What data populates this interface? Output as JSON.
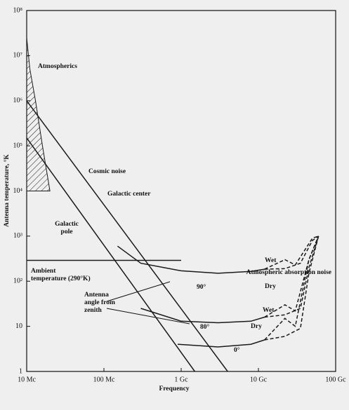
{
  "chart_data": {
    "type": "line",
    "x_label": "Frequency",
    "y_label": "Antenna temperature, °K",
    "log_x": true,
    "log_y": true,
    "xlim": [
      10,
      100000
    ],
    "xticks": [
      {
        "value": 10,
        "label": "10 Mc"
      },
      {
        "value": 100,
        "label": "100 Mc"
      },
      {
        "value": 1000,
        "label": "1 Gc"
      },
      {
        "value": 10000,
        "label": "10 Gc"
      },
      {
        "value": 100000,
        "label": "100 Gc"
      }
    ],
    "ylim": [
      1,
      100000000
    ],
    "yticks": [
      {
        "value": 1,
        "label": "1"
      },
      {
        "value": 10,
        "label": "10"
      },
      {
        "value": 100,
        "label": "10²"
      },
      {
        "value": 1000,
        "label": "10³"
      },
      {
        "value": 10000,
        "label": "10⁴"
      },
      {
        "value": 100000,
        "label": "10⁵"
      },
      {
        "value": 1000000,
        "label": "10⁶"
      },
      {
        "value": 10000000,
        "label": "10⁷"
      },
      {
        "value": 100000000,
        "label": "10⁸"
      }
    ],
    "color": "#1a1a1a",
    "area": {
      "x": [
        10,
        11,
        13,
        16,
        20
      ],
      "values": [
        25000000,
        5000000,
        1000000,
        100000,
        10000
      ],
      "base": 10000
    },
    "ambient": {
      "value": 290,
      "x": [
        10,
        1000
      ]
    },
    "series": [
      {
        "color": "#1a1a1a",
        "dash": false,
        "x": [
          10,
          4000
        ],
        "values": [
          1000000,
          1
        ]
      },
      {
        "color": "#1a1a1a",
        "dash": false,
        "x": [
          10,
          1500
        ],
        "values": [
          150000,
          1
        ]
      },
      {
        "color": "#1a1a1a",
        "dash": false,
        "x": [
          150,
          300,
          1000,
          3000,
          8000,
          12000
        ],
        "values": [
          600,
          250,
          170,
          150,
          165,
          185
        ]
      },
      {
        "color": "#1a1a1a",
        "dash": true,
        "x": [
          12000,
          22000,
          30000,
          50000,
          60000
        ],
        "values": [
          185,
          300,
          230,
          900,
          1000
        ]
      },
      {
        "color": "#1a1a1a",
        "dash": true,
        "x": [
          12000,
          22000,
          35000,
          50000,
          60000
        ],
        "values": [
          185,
          190,
          250,
          800,
          1000
        ]
      },
      {
        "color": "#1a1a1a",
        "dash": false,
        "x": [
          300,
          1000,
          3000,
          8000,
          12000
        ],
        "values": [
          25,
          13,
          12,
          13,
          16
        ]
      },
      {
        "color": "#1a1a1a",
        "dash": true,
        "x": [
          12000,
          22000,
          30000,
          45000,
          60000
        ],
        "values": [
          16,
          30,
          22,
          300,
          1000
        ]
      },
      {
        "color": "#1a1a1a",
        "dash": true,
        "x": [
          12000,
          22000,
          35000,
          45000,
          60000
        ],
        "values": [
          16,
          18,
          25,
          200,
          1000
        ]
      },
      {
        "color": "#1a1a1a",
        "dash": false,
        "x": [
          900,
          3000,
          8000,
          12000
        ],
        "values": [
          4,
          3.5,
          4,
          5
        ]
      },
      {
        "color": "#1a1a1a",
        "dash": true,
        "x": [
          12000,
          22000,
          30000,
          45000,
          60000
        ],
        "values": [
          5,
          15,
          10,
          300,
          1000
        ]
      },
      {
        "color": "#1a1a1a",
        "dash": true,
        "x": [
          12000,
          22000,
          35000,
          45000,
          60000
        ],
        "values": [
          5,
          6,
          9,
          150,
          1000
        ]
      }
    ],
    "annotations": [
      {
        "lines": [
          "Atmospherics"
        ]
      },
      {
        "lines": [
          "Cosmic noise"
        ]
      },
      {
        "lines": [
          "Galactic center"
        ]
      },
      {
        "lines": [
          "Galactic",
          "pole"
        ]
      },
      {
        "lines": [
          "Ambient",
          "temperature (290°K)"
        ]
      },
      {
        "lines": [
          "Atmospheric absorption noise"
        ]
      },
      {
        "lines": [
          "Wet"
        ]
      },
      {
        "lines": [
          "Dry"
        ]
      },
      {
        "lines": [
          "Wet"
        ]
      },
      {
        "lines": [
          "Dry"
        ]
      },
      {
        "lines": [
          "90°"
        ]
      },
      {
        "lines": [
          "80°"
        ]
      },
      {
        "lines": [
          "0°"
        ]
      },
      {
        "lines": [
          "Antenna",
          "angle from",
          "zenith"
        ]
      }
    ]
  }
}
